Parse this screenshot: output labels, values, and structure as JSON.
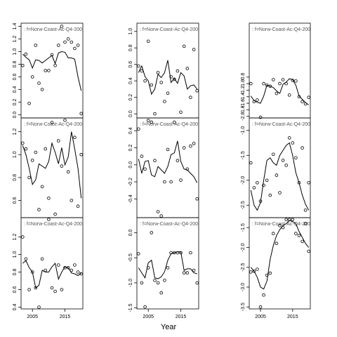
{
  "figure": {
    "xlabel": "Year"
  },
  "colors": {
    "line": "#000000",
    "points": "#000000",
    "strip_text": "#555555",
    "axis": "#000000"
  },
  "chart_data": [
    {
      "type": "line",
      "strip": ": f=Norw-Coast-Ac-Q4-200",
      "xlim": [
        2001.5,
        2020.5
      ],
      "ylim": [
        -0.05,
        1.45
      ],
      "xticks": [],
      "yticks": [
        0.0,
        0.2,
        0.4,
        0.6,
        0.8,
        1.0,
        1.2,
        1.4
      ],
      "ytick_labels": [
        "0.0",
        "0.2",
        "0.4",
        "0.6",
        "0.8",
        "1.0",
        "1.2",
        "1.4"
      ],
      "series": [
        {
          "x": [
            2002,
            2003,
            2004,
            2005,
            2006,
            2007,
            2008,
            2009,
            2010,
            2011,
            2012,
            2013,
            2014,
            2015,
            2016,
            2017,
            2018,
            2019,
            2020
          ],
          "y": [
            0.96,
            0.91,
            0.87,
            0.74,
            0.87,
            0.86,
            0.82,
            0.86,
            0.9,
            0.94,
            0.81,
            0.98,
            1.0,
            0.99,
            0.9,
            0.9,
            0.88,
            0.6,
            0.38
          ]
        }
      ],
      "points": {
        "x": [
          2002,
          2003,
          2004,
          2005,
          2006,
          2007,
          2008,
          2009,
          2010,
          2011,
          2012,
          2013,
          2014,
          2015,
          2016,
          2017,
          2018,
          2019,
          2020
        ],
        "y": [
          0.78,
          0.96,
          0.18,
          0.6,
          1.1,
          0.5,
          0.4,
          0.7,
          0.7,
          0.95,
          0.78,
          1.1,
          1.4,
          1.15,
          1.2,
          1.15,
          1.05,
          1.1,
          0.02
        ]
      }
    },
    {
      "type": "line",
      "strip": ": f=Norw-Coast-Ac-Q4-200",
      "xlim": [
        2001.5,
        2020.5
      ],
      "ylim": [
        -0.05,
        1.1
      ],
      "xticks": [],
      "yticks": [
        0.0,
        0.2,
        0.4,
        0.6,
        0.8,
        1.0
      ],
      "ytick_labels": [
        "0.0",
        "0.2",
        "0.4",
        "0.6",
        "0.8",
        "1.0"
      ],
      "series": [
        {
          "x": [
            2002,
            2003,
            2004,
            2005,
            2006,
            2007,
            2008,
            2009,
            2010,
            2011,
            2012,
            2013,
            2014,
            2015,
            2016,
            2017,
            2018,
            2019,
            2020
          ],
          "y": [
            0.5,
            0.58,
            0.45,
            0.4,
            0.24,
            0.3,
            0.48,
            0.44,
            0.5,
            0.65,
            0.38,
            0.43,
            0.37,
            0.5,
            0.46,
            0.3,
            0.34,
            0.35,
            0.3
          ]
        }
      ],
      "points": {
        "x": [
          2002,
          2003,
          2004,
          2005,
          2006,
          2007,
          2008,
          2009,
          2010,
          2011,
          2012,
          2013,
          2014,
          2015,
          2016,
          2017,
          2018,
          2019,
          2020
        ],
        "y": [
          0.58,
          0.52,
          0.4,
          0.88,
          0.35,
          0.0,
          0.5,
          0.38,
          0.15,
          0.25,
          0.45,
          0.42,
          0.52,
          0.02,
          0.82,
          0.55,
          0.2,
          0.78,
          0.28
        ]
      }
    },
    {
      "type": "line",
      "strip": ": f=Norw-Coast-Ac-Q4-200",
      "xlim": [
        2001.5,
        2020.5
      ],
      "ylim": [
        -2.05,
        0.85
      ],
      "xticks": [],
      "yticks": [
        -2.0,
        -1.8,
        -1.6,
        -1.4,
        -1.2,
        -1.0,
        -0.8
      ],
      "ytick_labels": [
        "-2.0",
        "-1.8",
        "-1.6",
        "-1.4",
        "-1.2",
        "-1.0",
        "-0.8"
      ],
      "series": [
        {
          "x": [
            2002,
            2003,
            2004,
            2005,
            2006,
            2007,
            2008,
            2009,
            2010,
            2011,
            2012,
            2013,
            2014,
            2015,
            2016,
            2017,
            2018,
            2019,
            2020
          ],
          "y": [
            -1.38,
            -1.52,
            -1.57,
            -1.6,
            -1.38,
            -1.05,
            -1.08,
            -1.12,
            -1.22,
            -1.3,
            -1.02,
            -0.95,
            -0.85,
            -0.88,
            -1.05,
            -1.38,
            -1.48,
            -1.58,
            -1.65
          ]
        }
      ],
      "points": {
        "x": [
          2002,
          2003,
          2004,
          2005,
          2006,
          2007,
          2008,
          2009,
          2010,
          2011,
          2012,
          2013,
          2014,
          2015,
          2016,
          2017,
          2018,
          2019,
          2020
        ],
        "y": [
          -1.0,
          -1.55,
          -1.5,
          -2.03,
          -1.0,
          -1.05,
          -1.08,
          -0.88,
          -1.3,
          -1.0,
          -0.88,
          -1.0,
          -1.35,
          -0.9,
          -0.92,
          -1.4,
          -1.55,
          -1.62,
          -1.42
        ]
      }
    },
    {
      "type": "line",
      "strip": ": f=Norw-Coast-Ac-Q4-200",
      "xlim": [
        2001.5,
        2020.5
      ],
      "ylim": [
        0.45,
        1.32
      ],
      "xticks": [],
      "yticks": [
        0.6,
        0.8,
        1.0,
        1.2
      ],
      "ytick_labels": [
        "0.6",
        "0.8",
        "1.0",
        "1.2"
      ],
      "series": [
        {
          "x": [
            2002,
            2003,
            2004,
            2005,
            2006,
            2007,
            2008,
            2009,
            2010,
            2011,
            2012,
            2013,
            2014,
            2015,
            2016,
            2017,
            2018,
            2019,
            2020
          ],
          "y": [
            1.08,
            1.0,
            0.88,
            0.74,
            0.78,
            0.92,
            0.9,
            0.88,
            0.94,
            1.1,
            1.02,
            0.92,
            1.06,
            0.91,
            0.98,
            1.2,
            1.05,
            0.88,
            0.62
          ]
        }
      ],
      "points": {
        "x": [
          2002,
          2003,
          2004,
          2005,
          2006,
          2007,
          2008,
          2009,
          2010,
          2011,
          2012,
          2013,
          2014,
          2015,
          2016,
          2017,
          2018,
          2019,
          2020
        ],
        "y": [
          1.1,
          1.05,
          0.8,
          0.95,
          1.02,
          0.52,
          0.72,
          1.05,
          0.62,
          1.28,
          0.48,
          1.12,
          0.9,
          1.3,
          0.85,
          0.6,
          1.15,
          0.55,
          1.0
        ]
      }
    },
    {
      "type": "line",
      "strip": ": f=Norw-Coast-Ac-Q4-200",
      "xlim": [
        2001.5,
        2020.5
      ],
      "ylim": [
        -0.62,
        0.55
      ],
      "xticks": [],
      "yticks": [
        -0.4,
        -0.2,
        0.0,
        0.2,
        0.4
      ],
      "ytick_labels": [
        "-0.4",
        "-0.2",
        "0.0",
        "0.2",
        "0.4"
      ],
      "series": [
        {
          "x": [
            2002,
            2003,
            2004,
            2005,
            2006,
            2007,
            2008,
            2009,
            2010,
            2011,
            2012,
            2013,
            2014,
            2015,
            2016,
            2017,
            2018,
            2019,
            2020
          ],
          "y": [
            0.07,
            -0.1,
            0.04,
            0.05,
            -0.12,
            -0.14,
            -0.02,
            -0.06,
            -0.1,
            -0.02,
            0.12,
            0.14,
            0.28,
            0.04,
            -0.05,
            -0.06,
            -0.1,
            -0.14,
            -0.21
          ]
        }
      ],
      "points": {
        "x": [
          2002,
          2003,
          2004,
          2005,
          2006,
          2007,
          2008,
          2009,
          2010,
          2011,
          2012,
          2013,
          2014,
          2015,
          2016,
          2017,
          2018,
          2019,
          2020
        ],
        "y": [
          0.42,
          0.1,
          -0.05,
          0.52,
          0.5,
          0.05,
          -0.55,
          -0.6,
          -0.2,
          0.18,
          -0.2,
          0.5,
          0.05,
          -0.18,
          0.2,
          -0.05,
          0.22,
          0.25,
          -0.4
        ]
      }
    },
    {
      "type": "line",
      "strip": ": f=Norw-Coast-Ac-Q4-200",
      "xlim": [
        2001.5,
        2020.5
      ],
      "ylim": [
        -2.75,
        -0.75
      ],
      "xticks": [],
      "yticks": [
        -2.5,
        -2.0,
        -1.5,
        -1.0
      ],
      "ytick_labels": [
        "-2.5",
        "-2.0",
        "-1.5",
        "-1.0"
      ],
      "series": [
        {
          "x": [
            2002,
            2003,
            2004,
            2005,
            2006,
            2007,
            2008,
            2009,
            2010,
            2011,
            2012,
            2013,
            2014,
            2015,
            2016,
            2017,
            2018,
            2019,
            2020
          ],
          "y": [
            -2.2,
            -2.5,
            -2.6,
            -2.45,
            -2.0,
            -1.6,
            -1.55,
            -1.65,
            -1.7,
            -1.5,
            -1.4,
            -1.3,
            -1.25,
            -1.5,
            -1.85,
            -2.05,
            -2.3,
            -2.48,
            -2.6
          ]
        }
      ],
      "points": {
        "x": [
          2002,
          2003,
          2004,
          2005,
          2006,
          2007,
          2008,
          2009,
          2010,
          2011,
          2012,
          2013,
          2014,
          2015,
          2016,
          2017,
          2018,
          2019,
          2020
        ],
        "y": [
          -1.65,
          -2.15,
          -2.05,
          -2.42,
          -2.1,
          -2.0,
          -2.3,
          -1.48,
          -1.9,
          -2.25,
          -1.6,
          -1.7,
          -1.15,
          -1.25,
          -1.55,
          -2.05,
          -1.35,
          -2.6,
          -2.05
        ]
      }
    },
    {
      "type": "line",
      "strip": ": f=Norw-Coast-Ac-Q4-200",
      "xlim": [
        2001.5,
        2020.5
      ],
      "ylim": [
        0.38,
        1.42
      ],
      "xticks": [
        2005,
        2015
      ],
      "xtick_labels": [
        "2005",
        "2015"
      ],
      "yticks": [
        0.4,
        0.6,
        0.8,
        1.0,
        1.2
      ],
      "ytick_labels": [
        "0.4",
        "0.6",
        "0.8",
        "1.0",
        "1.2"
      ],
      "series": [
        {
          "x": [
            2002,
            2003,
            2004,
            2005,
            2006,
            2007,
            2008,
            2009,
            2010,
            2011,
            2012,
            2013,
            2014,
            2015,
            2016,
            2017,
            2018,
            2019,
            2020
          ],
          "y": [
            0.9,
            0.93,
            0.85,
            0.8,
            0.62,
            0.65,
            0.82,
            0.8,
            0.8,
            0.86,
            0.9,
            0.72,
            0.8,
            0.86,
            0.85,
            0.79,
            0.78,
            0.76,
            0.79
          ]
        }
      ],
      "points": {
        "x": [
          2002,
          2003,
          2004,
          2005,
          2006,
          2007,
          2008,
          2009,
          2010,
          2011,
          2012,
          2013,
          2014,
          2015,
          2016,
          2017,
          2018,
          2019,
          2020
        ],
        "y": [
          1.2,
          0.95,
          0.6,
          0.8,
          0.62,
          0.4,
          0.95,
          0.82,
          1.4,
          0.62,
          0.58,
          0.88,
          0.6,
          0.85,
          0.85,
          0.82,
          0.88,
          0.8,
          0.78
        ]
      }
    },
    {
      "type": "line",
      "strip": ": f=Norw-Coast-Ac-Q4-200",
      "xlim": [
        2001.5,
        2020.5
      ],
      "ylim": [
        -1.52,
        0.3
      ],
      "xticks": [
        2005,
        2015
      ],
      "xtick_labels": [
        "2005",
        "2015"
      ],
      "yticks": [
        -1.5,
        -1.0,
        -0.5,
        0.0
      ],
      "ytick_labels": [
        "-1.5",
        "-1.0",
        "-0.5",
        "0.0"
      ],
      "series": [
        {
          "x": [
            2002,
            2003,
            2004,
            2005,
            2006,
            2007,
            2008,
            2009,
            2010,
            2011,
            2012,
            2013,
            2014,
            2015,
            2016,
            2017,
            2018,
            2019,
            2020
          ],
          "y": [
            -0.7,
            -0.8,
            -0.9,
            -0.6,
            -0.55,
            -0.9,
            -0.92,
            -0.88,
            -0.78,
            -0.55,
            -0.42,
            -0.4,
            -0.38,
            -0.38,
            -0.75,
            -0.72,
            -0.72,
            -0.8,
            -0.82
          ]
        }
      ],
      "points": {
        "x": [
          2002,
          2003,
          2004,
          2005,
          2006,
          2007,
          2008,
          2009,
          2010,
          2011,
          2012,
          2013,
          2014,
          2015,
          2016,
          2017,
          2018,
          2019,
          2020
        ],
        "y": [
          -0.42,
          -1.0,
          -1.48,
          -0.7,
          0.0,
          -0.95,
          -1.0,
          -1.2,
          -0.95,
          -0.7,
          -0.4,
          -0.4,
          -0.4,
          -0.4,
          -0.8,
          -0.8,
          -0.4,
          -0.75,
          -1.0
        ]
      }
    },
    {
      "type": "line",
      "strip": ": f=Norw-Coast-Ac-Q4-200",
      "xlim": [
        2001.5,
        2020.5
      ],
      "ylim": [
        -3.55,
        -1.25
      ],
      "xticks": [
        2005,
        2015
      ],
      "xtick_labels": [
        "2005",
        "2015"
      ],
      "yticks": [
        -3.5,
        -3.0,
        -2.5,
        -2.0,
        -1.5
      ],
      "ytick_labels": [
        "-3.5",
        "-3.0",
        "-2.5",
        "-2.0",
        "-1.5"
      ],
      "series": [
        {
          "x": [
            2002,
            2003,
            2004,
            2005,
            2006,
            2007,
            2008,
            2009,
            2010,
            2011,
            2012,
            2013,
            2014,
            2015,
            2016,
            2017,
            2018,
            2019,
            2020
          ],
          "y": [
            -2.5,
            -2.6,
            -2.75,
            -3.0,
            -3.05,
            -2.85,
            -2.3,
            -1.95,
            -1.7,
            -1.55,
            -1.45,
            -1.4,
            -1.32,
            -1.35,
            -1.4,
            -1.6,
            -1.75,
            -1.9,
            -2.0
          ]
        }
      ],
      "points": {
        "x": [
          2002,
          2003,
          2004,
          2005,
          2006,
          2007,
          2008,
          2009,
          2010,
          2011,
          2012,
          2013,
          2014,
          2015,
          2016,
          2017,
          2018,
          2019,
          2020
        ],
        "y": [
          -2.62,
          -2.6,
          -2.55,
          -3.5,
          -3.2,
          -2.7,
          -2.65,
          -1.65,
          -1.9,
          -1.45,
          -1.5,
          -1.3,
          -1.3,
          -1.3,
          -1.65,
          -1.7,
          -1.85,
          -1.4,
          -2.1
        ]
      }
    }
  ]
}
